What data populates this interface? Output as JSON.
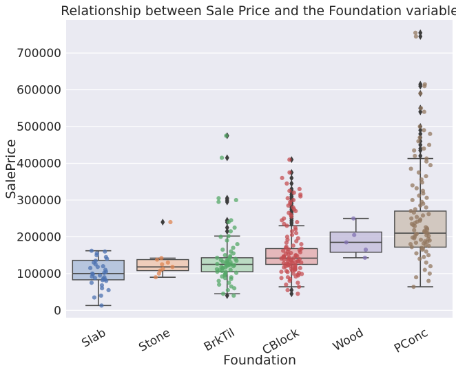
{
  "chart_data": {
    "type": "boxplot_with_stripplot",
    "title": "Relationship between Sale Price and the Foundation variable",
    "xlabel": "Foundation",
    "ylabel": "SalePrice",
    "categories": [
      "Slab",
      "Stone",
      "BrkTil",
      "CBlock",
      "Wood",
      "PConc"
    ],
    "ylim": [
      -20000,
      790000
    ],
    "yticks": [
      0,
      100000,
      200000,
      300000,
      400000,
      500000,
      600000,
      700000
    ],
    "grid": true,
    "background": "#EAEAF2",
    "colors": [
      "#4C72B0",
      "#DD8452",
      "#55A868",
      "#C44E52",
      "#8172B3",
      "#937860"
    ],
    "boxes": [
      {
        "name": "Slab",
        "min": 13000,
        "q1": 83000,
        "median": 100000,
        "q3": 136000,
        "max": 162000,
        "outliers": [],
        "points": [
          13000,
          35000,
          40000,
          55000,
          60000,
          68000,
          75000,
          80000,
          82000,
          84000,
          86000,
          88000,
          90000,
          92000,
          95000,
          98000,
          100000,
          102000,
          105000,
          110000,
          115000,
          118000,
          120000,
          125000,
          130000,
          135000,
          140000,
          145000,
          150000,
          155000,
          160000,
          162000
        ]
      },
      {
        "name": "Stone",
        "min": 90000,
        "q1": 108000,
        "median": 118000,
        "q3": 138000,
        "max": 142000,
        "outliers": [
          240000
        ],
        "points": [
          90000,
          100000,
          108000,
          113000,
          118000,
          125000,
          130000,
          138000,
          142000,
          240000
        ]
      },
      {
        "name": "BrkTil",
        "min": 45000,
        "q1": 105000,
        "median": 125000,
        "q3": 143000,
        "max": 202000,
        "outliers": [
          40000,
          215000,
          225000,
          240000,
          245000,
          295000,
          300000,
          305000,
          415000,
          475000
        ],
        "points": [
          40000,
          45000,
          55000,
          60000,
          65000,
          70000,
          75000,
          80000,
          85000,
          88000,
          90000,
          92000,
          95000,
          98000,
          100000,
          102000,
          104000,
          105000,
          107000,
          109000,
          110000,
          112000,
          114000,
          115000,
          117000,
          118000,
          120000,
          121000,
          122000,
          123000,
          124000,
          125000,
          126000,
          127000,
          128000,
          130000,
          131000,
          132000,
          134000,
          135000,
          137000,
          138000,
          140000,
          141000,
          143000,
          145000,
          148000,
          150000,
          155000,
          160000,
          165000,
          170000,
          180000,
          190000,
          200000,
          202000,
          215000,
          225000,
          240000,
          245000,
          295000,
          300000,
          305000,
          415000,
          475000
        ]
      },
      {
        "name": "CBlock",
        "min": 64000,
        "q1": 125000,
        "median": 142000,
        "q3": 168000,
        "max": 230000,
        "outliers": [
          45000,
          55000,
          235000,
          240000,
          245000,
          250000,
          255000,
          260000,
          265000,
          270000,
          275000,
          280000,
          285000,
          290000,
          295000,
          300000,
          305000,
          310000,
          315000,
          320000,
          325000,
          330000,
          345000,
          360000,
          375000,
          410000
        ],
        "points": [
          45000,
          55000,
          64000,
          70000,
          75000,
          80000,
          85000,
          88000,
          90000,
          92000,
          95000,
          97000,
          99000,
          100000,
          102000,
          104000,
          105000,
          107000,
          108000,
          110000,
          111000,
          112000,
          113000,
          114000,
          115000,
          116000,
          117000,
          118000,
          119000,
          120000,
          121000,
          122000,
          123000,
          124000,
          125000,
          126000,
          127000,
          128000,
          129000,
          130000,
          131000,
          132000,
          133000,
          134000,
          135000,
          136000,
          137000,
          138000,
          139000,
          140000,
          141000,
          142000,
          143000,
          144000,
          145000,
          146000,
          147000,
          148000,
          149000,
          150000,
          152000,
          154000,
          156000,
          158000,
          160000,
          162000,
          164000,
          166000,
          168000,
          170000,
          173000,
          176000,
          180000,
          184000,
          188000,
          192000,
          196000,
          200000,
          205000,
          210000,
          215000,
          220000,
          225000,
          230000,
          235000,
          240000,
          245000,
          250000,
          255000,
          260000,
          265000,
          270000,
          275000,
          280000,
          285000,
          290000,
          295000,
          300000,
          305000,
          310000,
          315000,
          320000,
          325000,
          330000,
          345000,
          360000,
          375000,
          410000
        ]
      },
      {
        "name": "Wood",
        "min": 143000,
        "q1": 158000,
        "median": 185000,
        "q3": 213000,
        "max": 250000,
        "outliers": [],
        "points": [
          143000,
          165000,
          185000,
          205000,
          250000
        ]
      },
      {
        "name": "PConc",
        "min": 64000,
        "q1": 172000,
        "median": 210000,
        "q3": 270000,
        "max": 413000,
        "outliers": [
          420000,
          435000,
          440000,
          450000,
          460000,
          470000,
          480000,
          490000,
          500000,
          540000,
          550000,
          590000,
          610000,
          615000,
          745000,
          755000
        ],
        "points": [
          64000,
          80000,
          90000,
          100000,
          110000,
          120000,
          130000,
          140000,
          145000,
          150000,
          155000,
          160000,
          165000,
          168000,
          170000,
          172000,
          175000,
          178000,
          180000,
          182000,
          184000,
          186000,
          188000,
          190000,
          192000,
          194000,
          196000,
          198000,
          200000,
          202000,
          204000,
          206000,
          208000,
          210000,
          212000,
          214000,
          216000,
          218000,
          220000,
          223000,
          226000,
          229000,
          232000,
          235000,
          238000,
          241000,
          244000,
          247000,
          250000,
          254000,
          258000,
          262000,
          266000,
          270000,
          275000,
          280000,
          285000,
          290000,
          295000,
          300000,
          306000,
          312000,
          318000,
          325000,
          332000,
          340000,
          348000,
          356000,
          365000,
          375000,
          385000,
          395000,
          405000,
          413000,
          420000,
          435000,
          440000,
          450000,
          460000,
          470000,
          480000,
          490000,
          500000,
          540000,
          550000,
          590000,
          610000,
          615000,
          745000,
          755000
        ]
      }
    ]
  }
}
